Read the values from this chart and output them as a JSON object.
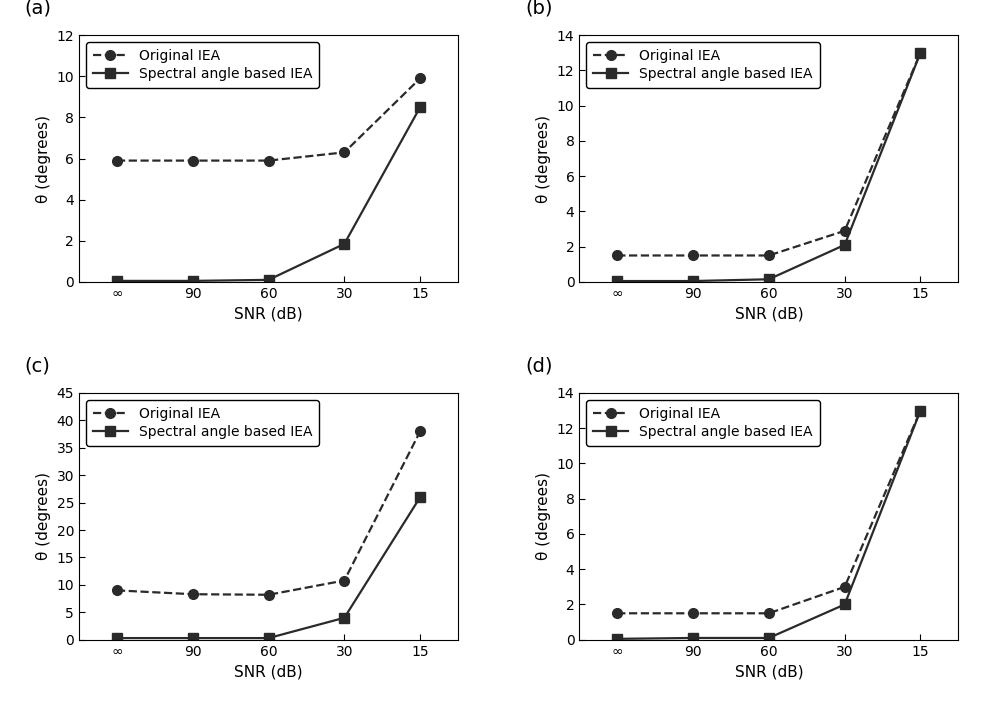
{
  "x_labels": [
    "∞",
    "90",
    "60",
    "30",
    "15"
  ],
  "x_positions": [
    0,
    1,
    2,
    3,
    4
  ],
  "subplots": [
    {
      "label": "(a)",
      "original_iea": [
        5.9,
        5.9,
        5.9,
        6.3,
        9.9
      ],
      "sa_iea": [
        0.05,
        0.05,
        0.1,
        1.85,
        8.5
      ],
      "ylim": [
        0,
        12
      ],
      "yticks": [
        0,
        2,
        4,
        6,
        8,
        10,
        12
      ]
    },
    {
      "label": "(b)",
      "original_iea": [
        1.5,
        1.5,
        1.5,
        2.9,
        13.0
      ],
      "sa_iea": [
        0.05,
        0.05,
        0.15,
        2.1,
        13.0
      ],
      "ylim": [
        0,
        14
      ],
      "yticks": [
        0,
        2,
        4,
        6,
        8,
        10,
        12,
        14
      ]
    },
    {
      "label": "(c)",
      "original_iea": [
        9.0,
        8.3,
        8.2,
        10.8,
        38.0
      ],
      "sa_iea": [
        0.3,
        0.3,
        0.3,
        4.0,
        26.0
      ],
      "ylim": [
        0,
        45
      ],
      "yticks": [
        0,
        5,
        10,
        15,
        20,
        25,
        30,
        35,
        40,
        45
      ]
    },
    {
      "label": "(d)",
      "original_iea": [
        1.5,
        1.5,
        1.5,
        3.0,
        13.0
      ],
      "sa_iea": [
        0.05,
        0.1,
        0.1,
        2.0,
        13.0
      ],
      "ylim": [
        0,
        14
      ],
      "yticks": [
        0,
        2,
        4,
        6,
        8,
        10,
        12,
        14
      ]
    }
  ],
  "xlabel": "SNR (dB)",
  "ylabel": "θ (degrees)",
  "legend_original": "Original IEA",
  "legend_sa": "Spectral angle based IEA",
  "line_color": "#2a2a2a",
  "marker_size": 7,
  "linewidth": 1.6,
  "font_size": 10,
  "label_font_size": 11,
  "tick_font_size": 10,
  "sublabel_font_size": 14
}
